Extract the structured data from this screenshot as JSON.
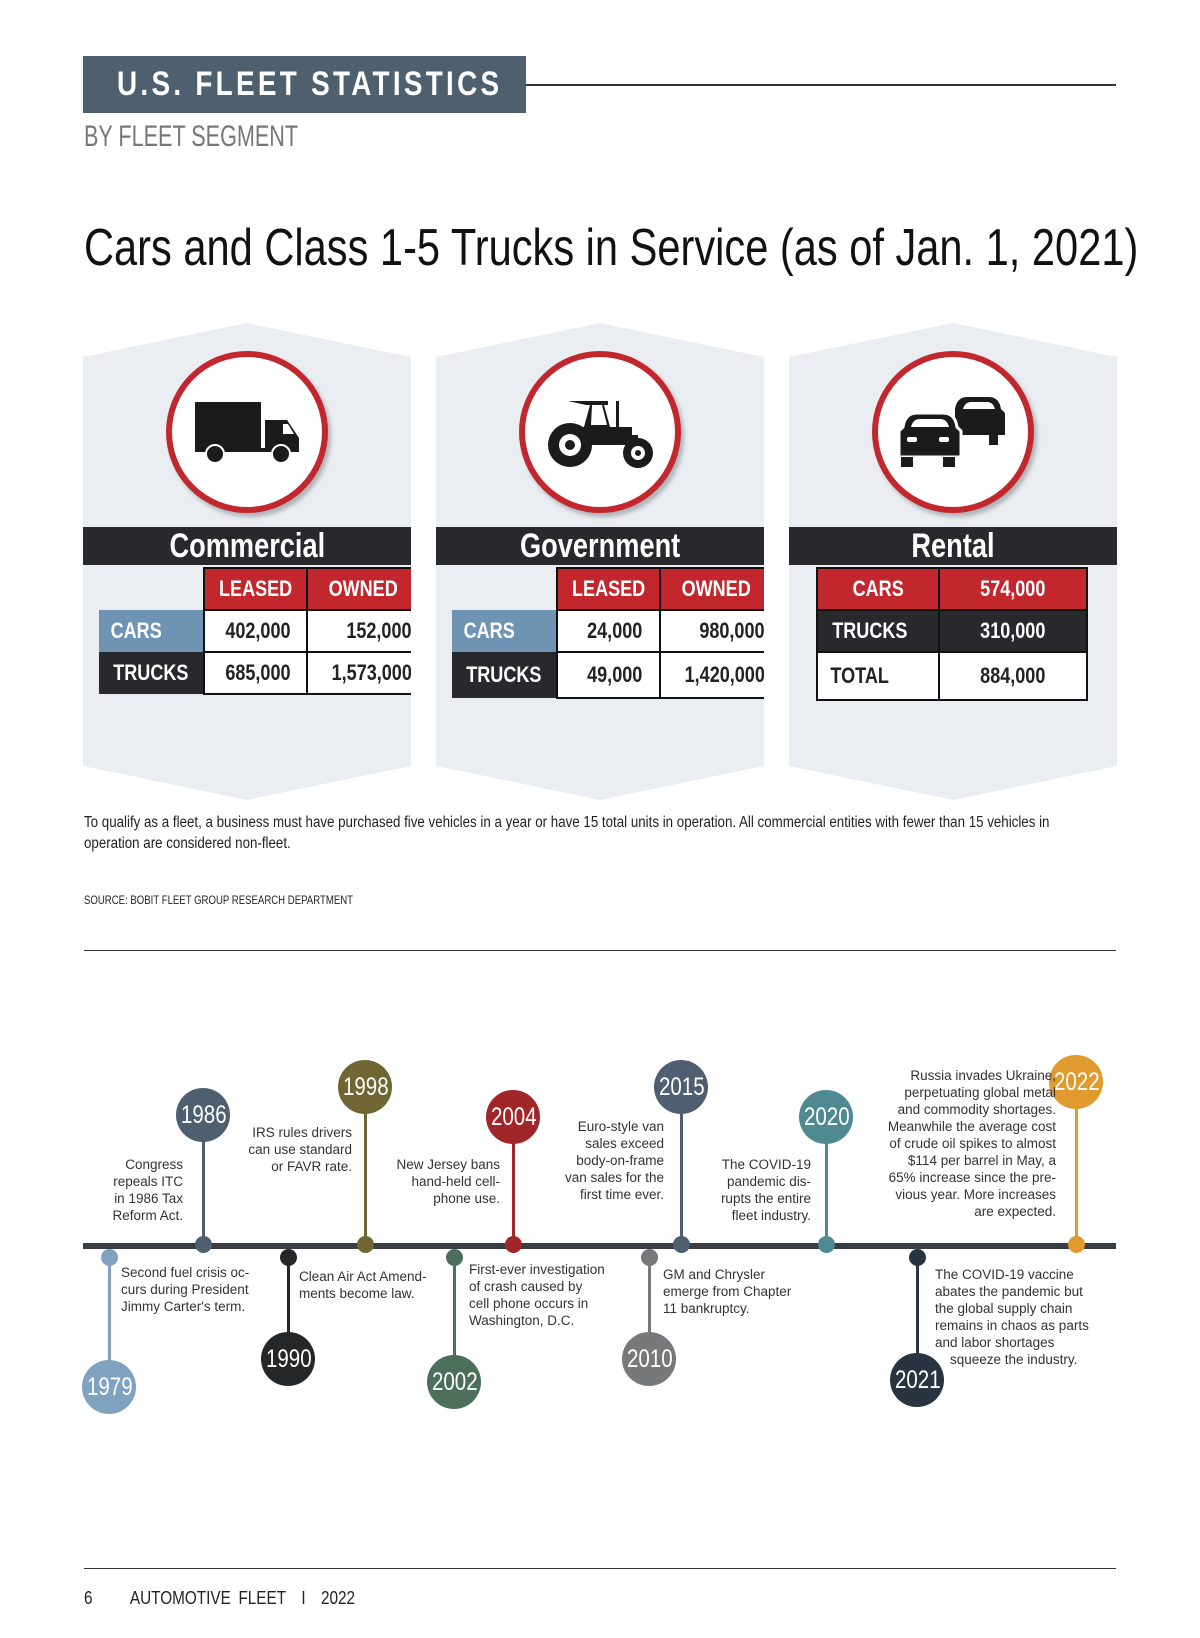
{
  "header": {
    "section": "U.S. FLEET STATISTICS",
    "subtitle": "BY FLEET SEGMENT"
  },
  "title": "Cars and Class 1-5 Trucks in Service (as of Jan. 1, 2021)",
  "colors": {
    "header": "#4e5f6d",
    "red": "#c1272d",
    "dark": "#27292c",
    "cars_blue": "#6f93b3",
    "panel": "#eaeef3"
  },
  "segments": {
    "commercial": {
      "name": "Commercial",
      "icon": "truck-icon",
      "cols": [
        "LEASED",
        "OWNED"
      ],
      "rows": [
        {
          "label": "CARS",
          "leased": "402,000",
          "owned": "152,000"
        },
        {
          "label": "TRUCKS",
          "leased": "685,000",
          "owned": "1,573,000"
        }
      ]
    },
    "government": {
      "name": "Government",
      "icon": "tractor-icon",
      "cols": [
        "LEASED",
        "OWNED"
      ],
      "rows": [
        {
          "label": "CARS",
          "leased": "24,000",
          "owned": "980,000"
        },
        {
          "label": "TRUCKS",
          "leased": "49,000",
          "owned": "1,420,000"
        }
      ]
    },
    "rental": {
      "name": "Rental",
      "icon": "cars-icon",
      "rows": [
        {
          "label": "CARS",
          "value": "574,000"
        },
        {
          "label": "TRUCKS",
          "value": "310,000"
        },
        {
          "label": "TOTAL",
          "value": "884,000"
        }
      ]
    }
  },
  "note": "To qualify as a fleet, a business must have purchased five vehicles in a year or have 15 total units in operation. All commercial entities with fewer than 15 vehicles in operation are considered non-fleet.",
  "source": "SOURCE: BOBIT FLEET GROUP RESEARCH DEPARTMENT",
  "timeline": [
    {
      "year": "1979",
      "color": "#7fa2c0",
      "text": "Second fuel crisis oc-\ncurs during President\nJimmy Carter's term."
    },
    {
      "year": "1986",
      "color": "#4e6070",
      "text": "Congress\nrepeals ITC\nin 1986 Tax\nReform Act."
    },
    {
      "year": "1990",
      "color": "#252628",
      "text": "Clean Air Act Amend-\nments become law."
    },
    {
      "year": "1998",
      "color": "#6f6634",
      "text": "IRS rules drivers\ncan use standard\nor FAVR rate."
    },
    {
      "year": "2002",
      "color": "#4e6e5c",
      "text": "First-ever investigation\nof crash caused by\ncell phone occurs in\nWashington, D.C."
    },
    {
      "year": "2004",
      "color": "#a1262a",
      "text": "New Jersey bans\nhand-held cell-\nphone use."
    },
    {
      "year": "2010",
      "color": "#77787a",
      "text": "GM and Chrysler\nemerge from Chapter\n11 bankruptcy."
    },
    {
      "year": "2015",
      "color": "#4f5f71",
      "text": "Euro-style van\nsales exceed\nbody-on-frame\nvan sales for the\nfirst time ever."
    },
    {
      "year": "2020",
      "color": "#4f8a93",
      "text": "The COVID-19\npandemic dis-\nrupts the entire\nfleet industry."
    },
    {
      "year": "2021",
      "color": "#2a3340",
      "text": "The COVID-19 vaccine\nabates the pandemic but\nthe global supply chain\nremains in chaos as parts\nand labor shortages\n    squeeze the industry."
    },
    {
      "year": "2022",
      "color": "#e09a2e",
      "text": "Russia invades Ukraine,\nperpetuating global metal\nand commodity shortages.\nMeanwhile the average cost\nof crude oil spikes to almost\n$114 per barrel in May, a\n65% increase since the pre-\nvious year. More increases\nare expected."
    }
  ],
  "footer": {
    "page": "6",
    "publication": "AUTOMOTIVE FLEET",
    "separator": "I",
    "year": "2022"
  }
}
